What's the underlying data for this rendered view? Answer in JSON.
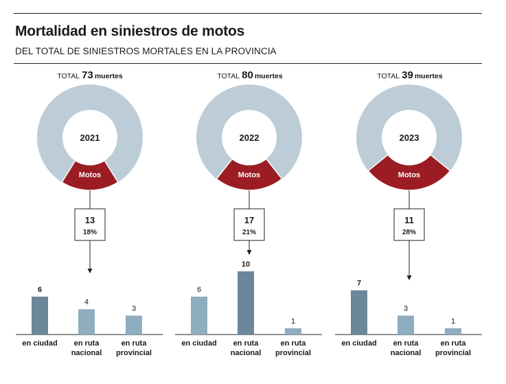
{
  "header": {
    "title": "Mortalidad en siniestros de motos",
    "subtitle": "DEL TOTAL DE SINIESTROS MORTALES EN LA PROVINCIA"
  },
  "colors": {
    "ring": "#bccdd8",
    "motos": "#9b1c22",
    "bar_dark": "#6b8799",
    "bar_light": "#8eadbf",
    "line": "#222222"
  },
  "chart_data": [
    {
      "type": "pie",
      "year": "2021",
      "total_label": "TOTAL",
      "total": 73,
      "total_unit": "muertes",
      "slice_label": "Motos",
      "motos": 13,
      "motos_pct": "18%",
      "bars": {
        "type": "bar",
        "categories": [
          "en ciudad",
          "en ruta nacional",
          "en ruta provincial"
        ],
        "category_lines": [
          [
            "en ciudad"
          ],
          [
            "en ruta",
            "nacional"
          ],
          [
            "en ruta",
            "provincial"
          ]
        ],
        "values": [
          6,
          4,
          3
        ],
        "highlight_index": 0
      }
    },
    {
      "type": "pie",
      "year": "2022",
      "total_label": "TOTAL",
      "total": 80,
      "total_unit": "muertes",
      "slice_label": "Motos",
      "motos": 17,
      "motos_pct": "21%",
      "bars": {
        "type": "bar",
        "categories": [
          "en ciudad",
          "en ruta nacional",
          "en ruta provincial"
        ],
        "category_lines": [
          [
            "en ciudad"
          ],
          [
            "en ruta",
            "nacional"
          ],
          [
            "en ruta",
            "provincial"
          ]
        ],
        "values": [
          6,
          10,
          1
        ],
        "highlight_index": 1
      }
    },
    {
      "type": "pie",
      "year": "2023",
      "total_label": "TOTAL",
      "total": 39,
      "total_unit": "muertes",
      "slice_label": "Motos",
      "motos": 11,
      "motos_pct": "28%",
      "bars": {
        "type": "bar",
        "categories": [
          "en ciudad",
          "en ruta nacional",
          "en ruta provincial"
        ],
        "category_lines": [
          [
            "en ciudad"
          ],
          [
            "en ruta",
            "nacional"
          ],
          [
            "en ruta",
            "provincial"
          ]
        ],
        "values": [
          7,
          3,
          1
        ],
        "highlight_index": 0
      }
    }
  ]
}
